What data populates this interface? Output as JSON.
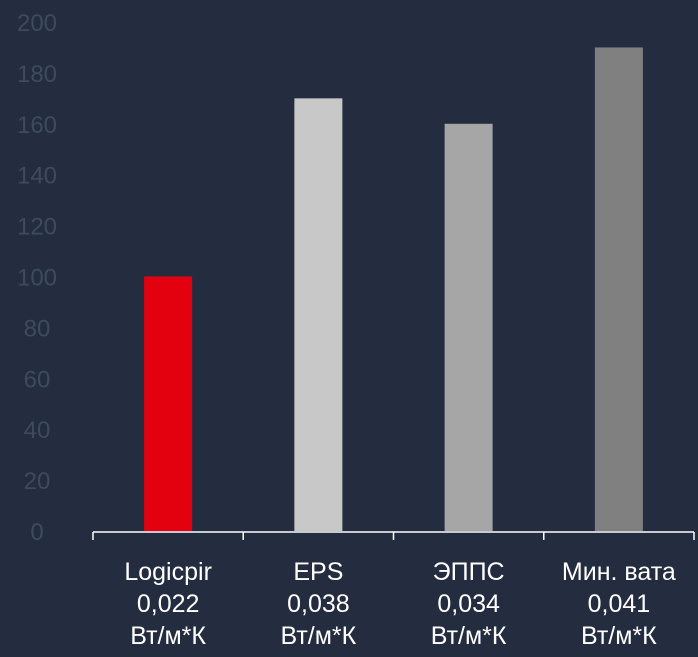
{
  "colors": {
    "background": "#242c3f",
    "tick_text": "#3e4a5e",
    "category_text": "#ffffff",
    "axis": "#ffffff"
  },
  "chart_data": {
    "type": "bar",
    "categories": [
      [
        "Logicpir",
        "0,022",
        "Вт/м*К"
      ],
      [
        "EPS",
        "0,038",
        "Вт/м*К"
      ],
      [
        "ЭППС",
        "0,034",
        "Вт/м*К"
      ],
      [
        "Мин. вата",
        "0,041",
        "Вт/м*К"
      ]
    ],
    "values": [
      100,
      170,
      160,
      190
    ],
    "bar_colors": [
      "#e3000f",
      "#c8c8c8",
      "#a6a6a6",
      "#808080"
    ],
    "title": "",
    "xlabel": "",
    "ylabel": "",
    "ylim": [
      0,
      200
    ],
    "yticks": [
      "0",
      "20",
      "40",
      "60",
      "80",
      "100",
      "120",
      "140",
      "160",
      "180",
      "200"
    ],
    "grid": false,
    "legend": "none"
  }
}
